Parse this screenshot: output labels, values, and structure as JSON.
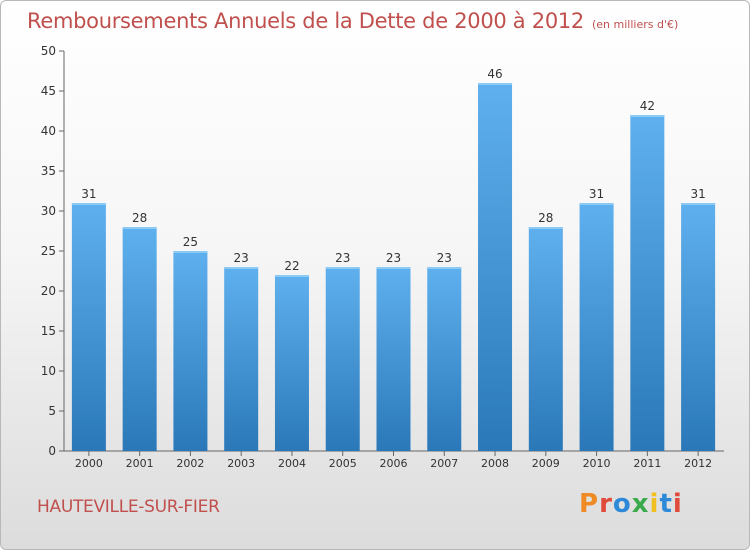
{
  "chart_data": {
    "type": "bar",
    "title": "Remboursements Annuels de la Dette de 2000 à 2012",
    "subtitle": "(en milliers d'€)",
    "categories": [
      "2000",
      "2001",
      "2002",
      "2003",
      "2004",
      "2005",
      "2006",
      "2007",
      "2008",
      "2009",
      "2010",
      "2011",
      "2012"
    ],
    "values": [
      31,
      28,
      25,
      23,
      22,
      23,
      23,
      23,
      46,
      28,
      31,
      42,
      31
    ],
    "xlabel": "",
    "ylabel": "",
    "ylim": [
      0,
      50
    ],
    "yticks": [
      0,
      5,
      10,
      15,
      20,
      25,
      30,
      35,
      40,
      45,
      50
    ],
    "grid": false,
    "bar_color": "#3a8fd6"
  },
  "footer": {
    "city": "HAUTEVILLE-SUR-FIER",
    "logo_text": "Proxiti"
  },
  "colors": {
    "title": "#c0504d",
    "bar_light": "#5fb0ee",
    "bar_dark": "#2a78b8",
    "logo": [
      "#f08a24",
      "#e04a3a",
      "#2e8ad8",
      "#3aaa4a",
      "#f0c020",
      "#2e8ad8",
      "#e04a3a"
    ]
  }
}
